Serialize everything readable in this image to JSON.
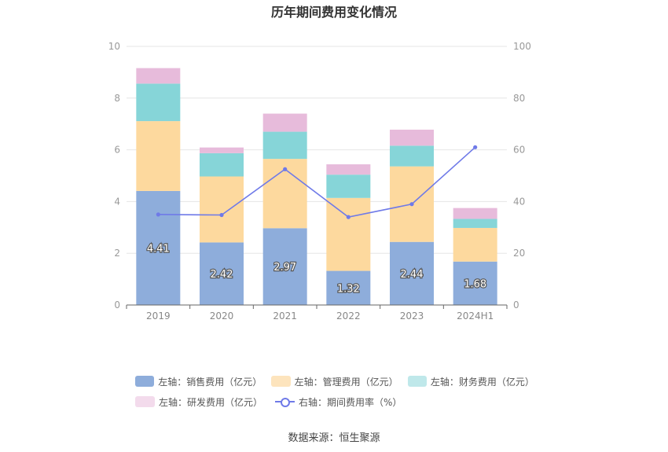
{
  "chart_data": {
    "type": "bar",
    "title": "历年期间费用变化情况",
    "categories": [
      "2019",
      "2020",
      "2021",
      "2022",
      "2023",
      "2024H1"
    ],
    "y_left": {
      "ylim": [
        0,
        10
      ],
      "ticks": [
        "0",
        "2",
        "4",
        "6",
        "8",
        "10"
      ]
    },
    "y_right": {
      "ylim": [
        0,
        100
      ],
      "ticks": [
        "0",
        "20",
        "40",
        "60",
        "80",
        "100"
      ]
    },
    "series": [
      {
        "name": "左轴：销售费用（亿元）",
        "kind": "bar",
        "axis": "left",
        "color": "#8eaddb",
        "values": [
          4.41,
          2.42,
          2.97,
          1.32,
          2.44,
          1.68
        ],
        "labels": [
          "4.41",
          "2.42",
          "2.97",
          "1.32",
          "2.44",
          "1.68"
        ]
      },
      {
        "name": "左轴：管理费用（亿元）",
        "kind": "bar",
        "axis": "left",
        "color": "#fdd99e",
        "values": [
          2.7,
          2.55,
          2.68,
          2.82,
          2.92,
          1.3
        ]
      },
      {
        "name": "左轴：财务费用（亿元）",
        "kind": "bar",
        "axis": "left",
        "color": "#86d5d8",
        "values": [
          1.45,
          0.9,
          1.05,
          0.9,
          0.8,
          0.35
        ]
      },
      {
        "name": "左轴：研发费用（亿元）",
        "kind": "bar",
        "axis": "left",
        "color": "#e7bbdb",
        "values": [
          0.6,
          0.22,
          0.7,
          0.4,
          0.62,
          0.42
        ]
      },
      {
        "name": "右轴：期间费用率（%）",
        "kind": "line",
        "axis": "right",
        "color": "#6f7ae8",
        "values": [
          35.0,
          34.8,
          52.5,
          34.0,
          39.0,
          61.0
        ]
      }
    ],
    "grid": true,
    "legend_position": "bottom"
  },
  "legend_rows": [
    [
      {
        "label": "左轴：销售费用（亿元）",
        "color": "#8eaddb",
        "kind": "bar"
      },
      {
        "label": "左轴：管理费用（亿元）",
        "color": "#fde4bd",
        "kind": "bar"
      },
      {
        "label": "左轴：财务费用（亿元）",
        "color": "#bfe8ea",
        "kind": "bar"
      }
    ],
    [
      {
        "label": "左轴：研发费用（亿元）",
        "color": "#f3dbec",
        "kind": "bar"
      },
      {
        "label": "右轴：期间费用率（%）",
        "color": "#6f7ae8",
        "kind": "line"
      }
    ]
  ],
  "source": "数据来源：恒生聚源"
}
